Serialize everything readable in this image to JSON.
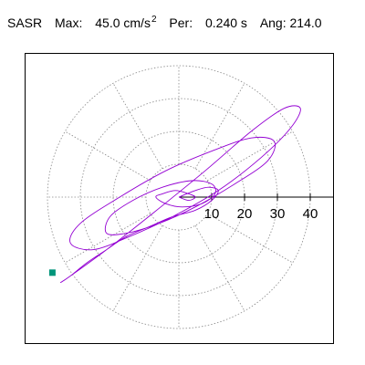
{
  "header": {
    "station": "SASR",
    "max_label": "Max:",
    "max_value": "45.0",
    "max_unit": "cm/s",
    "max_exp": "2",
    "per_label": "Per:",
    "per_value": "0.240 s",
    "ang_label": "Ang:",
    "ang_value": "214.0"
  },
  "colors": {
    "trace": "#9400d3",
    "marker": "#00957a",
    "grid": "#888888",
    "axis": "#000000"
  },
  "chart_data": {
    "type": "line",
    "title": "",
    "xlabel": "",
    "ylabel": "",
    "polar_grid": true,
    "radial_ticks": [
      10,
      20,
      30,
      40
    ],
    "radial_tick_labels": [
      "10",
      "20",
      "30",
      "40"
    ],
    "radial_range": [
      0,
      45
    ],
    "angular_spokes_deg": [
      0,
      30,
      60,
      90,
      120,
      150,
      180,
      210,
      240,
      270,
      300,
      330
    ],
    "grid": true,
    "legend": "none",
    "series": [
      {
        "x": [
          0,
          5,
          9,
          12,
          10,
          5,
          -2,
          -9,
          -16,
          -22,
          -28,
          -33,
          -36,
          -33,
          -22,
          -8,
          8,
          22,
          32,
          37,
          34,
          25,
          12,
          -2,
          -15,
          -26,
          -33,
          -30,
          -18,
          -4,
          10,
          22,
          29,
          27,
          17,
          5,
          -6,
          -16,
          -22,
          -21,
          -14,
          -5,
          4,
          10,
          11,
          7,
          1,
          -4,
          -7,
          -5,
          -1,
          3,
          5,
          3,
          0
        ],
        "y": [
          0,
          2,
          3,
          2,
          -1,
          -4,
          -6,
          -9,
          -12,
          -16,
          -20,
          -24,
          -26,
          -24,
          -16,
          -5,
          8,
          20,
          27,
          27,
          21,
          12,
          2,
          -6,
          -12,
          -16,
          -14,
          -8,
          0,
          8,
          14,
          18,
          17,
          11,
          4,
          -3,
          -8,
          -11,
          -11,
          -6,
          -1,
          3,
          5,
          4,
          1,
          -2,
          -3,
          -2,
          0,
          1,
          2,
          1,
          0,
          -1,
          0
        ]
      }
    ],
    "end_marker": {
      "x": -38.5,
      "y": -23.0
    }
  }
}
